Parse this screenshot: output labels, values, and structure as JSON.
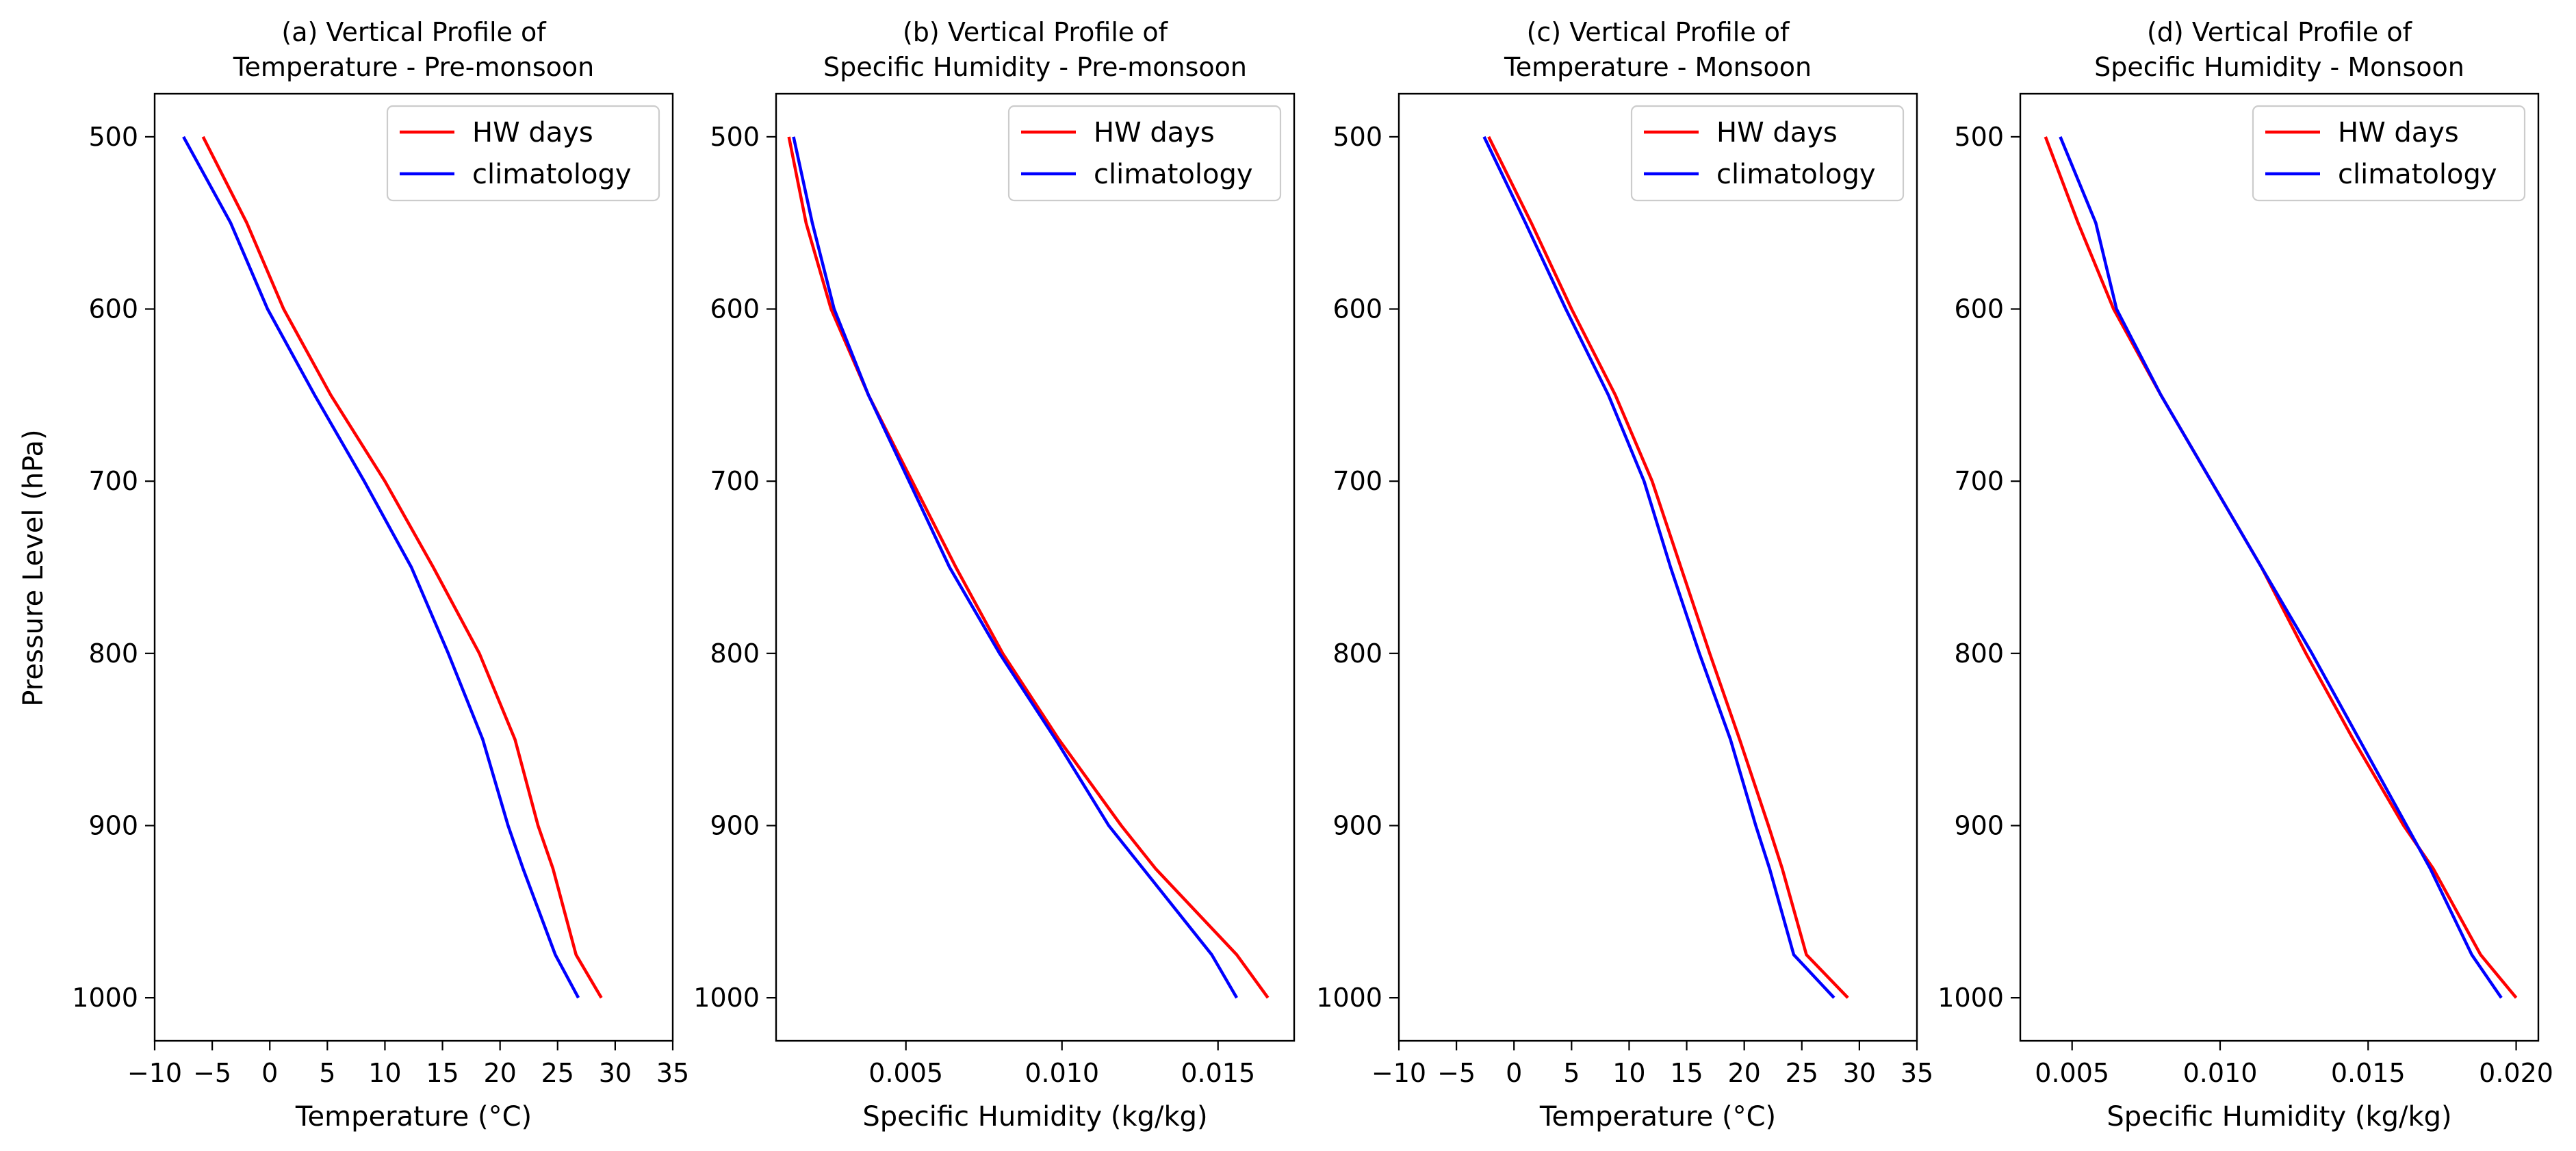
{
  "figure": {
    "ylabel": "Pressure Level (hPa)"
  },
  "chart_data": [
    {
      "type": "line",
      "title_line1": "(a) Vertical Profile of",
      "title_line2": "Temperature - Pre-monsoon",
      "xlabel": "Temperature (°C)",
      "ylabel": "Pressure Level (hPa)",
      "xlim": [
        -10,
        35
      ],
      "ylim": [
        1025,
        475
      ],
      "y_inverted": true,
      "xticks": [
        -10,
        -5,
        0,
        5,
        10,
        15,
        20,
        25,
        30,
        35
      ],
      "xtick_labels": [
        "−10",
        "−5",
        "0",
        "5",
        "10",
        "15",
        "20",
        "25",
        "30",
        "35"
      ],
      "yticks": [
        500,
        600,
        700,
        800,
        900,
        1000
      ],
      "ytick_labels": [
        "500",
        "600",
        "700",
        "800",
        "900",
        "1000"
      ],
      "legend_position": "upper right",
      "grid": false,
      "series": [
        {
          "name": "HW days",
          "color": "#ff0000",
          "x": [
            -5.8,
            -2.0,
            1.2,
            5.3,
            10.0,
            14.2,
            18.2,
            21.3,
            23.3,
            24.6,
            26.6,
            28.8
          ],
          "y": [
            500,
            550,
            600,
            650,
            700,
            750,
            800,
            850,
            900,
            925,
            975,
            1000
          ]
        },
        {
          "name": "climatology",
          "color": "#0000ff",
          "x": [
            -7.5,
            -3.4,
            -0.2,
            3.9,
            8.2,
            12.3,
            15.5,
            18.5,
            20.7,
            22.0,
            24.8,
            26.8
          ],
          "y": [
            500,
            550,
            600,
            650,
            700,
            750,
            800,
            850,
            900,
            925,
            975,
            1000
          ]
        }
      ]
    },
    {
      "type": "line",
      "title_line1": "(b) Vertical Profile of",
      "title_line2": "Specific Humidity - Pre-monsoon",
      "xlabel": "Specific Humidity (kg/kg)",
      "ylabel": "",
      "xlim": [
        0.00084,
        0.01744
      ],
      "ylim": [
        1025,
        475
      ],
      "y_inverted": true,
      "xticks": [
        0.005,
        0.01,
        0.015
      ],
      "xtick_labels": [
        "0.005",
        "0.010",
        "0.015"
      ],
      "yticks": [
        500,
        600,
        700,
        800,
        900,
        1000
      ],
      "ytick_labels": [
        "500",
        "600",
        "700",
        "800",
        "900",
        "1000"
      ],
      "legend_position": "upper right",
      "grid": false,
      "series": [
        {
          "name": "HW days",
          "color": "#ff0000",
          "x": [
            0.00125,
            0.0018,
            0.0026,
            0.0038,
            0.0052,
            0.0066,
            0.0081,
            0.0099,
            0.0119,
            0.013,
            0.0156,
            0.0166
          ],
          "y": [
            500,
            550,
            600,
            650,
            700,
            750,
            800,
            850,
            900,
            925,
            975,
            1000
          ]
        },
        {
          "name": "climatology",
          "color": "#0000ff",
          "x": [
            0.0014,
            0.002,
            0.0027,
            0.0038,
            0.0051,
            0.0064,
            0.008,
            0.0098,
            0.0115,
            0.0126,
            0.0148,
            0.0156
          ],
          "y": [
            500,
            550,
            600,
            650,
            700,
            750,
            800,
            850,
            900,
            925,
            975,
            1000
          ]
        }
      ]
    },
    {
      "type": "line",
      "title_line1": "(c) Vertical Profile of",
      "title_line2": "Temperature - Monsoon",
      "xlabel": "Temperature (°C)",
      "ylabel": "",
      "xlim": [
        -10,
        35
      ],
      "ylim": [
        1025,
        475
      ],
      "y_inverted": true,
      "xticks": [
        -10,
        -5,
        0,
        5,
        10,
        15,
        20,
        25,
        30,
        35
      ],
      "xtick_labels": [
        "−10",
        "−5",
        "0",
        "5",
        "10",
        "15",
        "20",
        "25",
        "30",
        "35"
      ],
      "yticks": [
        500,
        600,
        700,
        800,
        900,
        1000
      ],
      "ytick_labels": [
        "500",
        "600",
        "700",
        "800",
        "900",
        "1000"
      ],
      "legend_position": "upper right",
      "grid": false,
      "series": [
        {
          "name": "HW days",
          "color": "#ff0000",
          "x": [
            -2.2,
            1.5,
            5.0,
            8.8,
            12.0,
            14.5,
            17.0,
            19.6,
            22.1,
            23.3,
            25.4,
            29.0
          ],
          "y": [
            500,
            550,
            600,
            650,
            700,
            750,
            800,
            850,
            900,
            925,
            975,
            1000
          ]
        },
        {
          "name": "climatology",
          "color": "#0000ff",
          "x": [
            -2.6,
            1.0,
            4.5,
            8.2,
            11.3,
            13.6,
            16.1,
            18.8,
            21.0,
            22.2,
            24.3,
            27.8
          ],
          "y": [
            500,
            550,
            600,
            650,
            700,
            750,
            800,
            850,
            900,
            925,
            975,
            1000
          ]
        }
      ]
    },
    {
      "type": "line",
      "title_line1": "(d) Vertical Profile of",
      "title_line2": "Specific Humidity - Monsoon",
      "xlabel": "Specific Humidity (kg/kg)",
      "ylabel": "",
      "xlim": [
        0.00325,
        0.02075
      ],
      "ylim": [
        1025,
        475
      ],
      "y_inverted": true,
      "xticks": [
        0.005,
        0.01,
        0.015,
        0.02
      ],
      "xtick_labels": [
        "0.005",
        "0.010",
        "0.015",
        "0.020"
      ],
      "yticks": [
        500,
        600,
        700,
        800,
        900,
        1000
      ],
      "ytick_labels": [
        "500",
        "600",
        "700",
        "800",
        "900",
        "1000"
      ],
      "legend_position": "upper right",
      "grid": false,
      "series": [
        {
          "name": "HW days",
          "color": "#ff0000",
          "x": [
            0.0041,
            0.0052,
            0.0064,
            0.008,
            0.0097,
            0.0114,
            0.0129,
            0.0145,
            0.0162,
            0.0172,
            0.0188,
            0.02
          ],
          "y": [
            500,
            550,
            600,
            650,
            700,
            750,
            800,
            850,
            900,
            925,
            975,
            1000
          ]
        },
        {
          "name": "climatology",
          "color": "#0000ff",
          "x": [
            0.0046,
            0.0058,
            0.0065,
            0.008,
            0.0097,
            0.0114,
            0.0131,
            0.0147,
            0.0163,
            0.0171,
            0.0185,
            0.0195
          ],
          "y": [
            500,
            550,
            600,
            650,
            700,
            750,
            800,
            850,
            900,
            925,
            975,
            1000
          ]
        }
      ]
    }
  ]
}
